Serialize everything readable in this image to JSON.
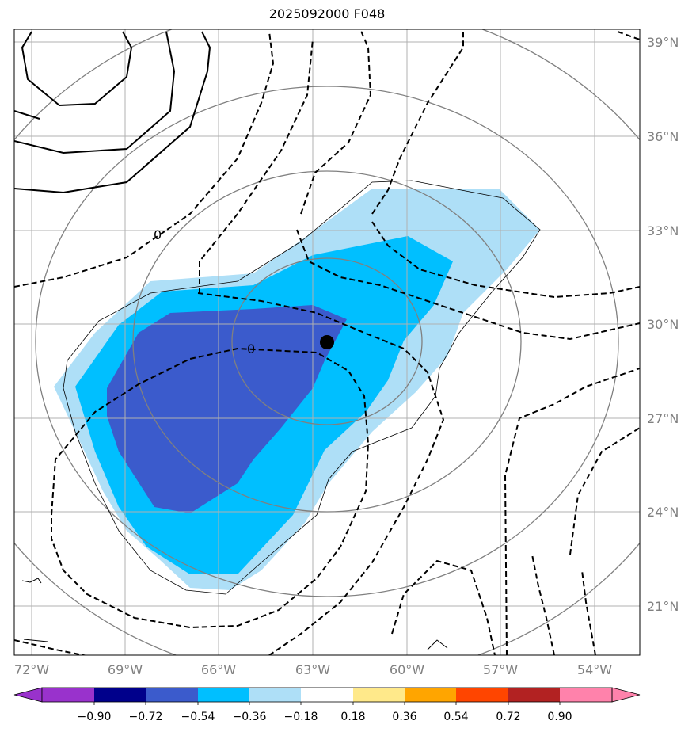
{
  "title": "2025092000 F048",
  "lon_labels": [
    "72°W",
    "69°W",
    "66°W",
    "63°W",
    "60°W",
    "57°W",
    "54°W"
  ],
  "lat_labels": [
    "39°N",
    "36°N",
    "33°N",
    "30°N",
    "27°N",
    "24°N",
    "21°N"
  ],
  "contour_zero_label": "0",
  "colorbar": {
    "tick_labels": [
      "−0.90",
      "−0.72",
      "−0.54",
      "−0.36",
      "−0.18",
      "0.18",
      "0.36",
      "0.54",
      "0.72",
      "0.90"
    ],
    "colors": [
      "#9932cc",
      "#00008b",
      "#3b5bcc",
      "#00bfff",
      "#aedff7",
      "#ffffff",
      "#ffe98a",
      "#ffa500",
      "#ff4500",
      "#b22222",
      "#ff82ab"
    ]
  },
  "map_colors": {
    "shade_light": "#aedff7",
    "shade_mid": "#00bfff",
    "shade_dark": "#3b5bcc",
    "grid": "#b0b0b0",
    "circles": "#808080",
    "axis_text": "#808080"
  },
  "storm_center_marker": "black-dot"
}
